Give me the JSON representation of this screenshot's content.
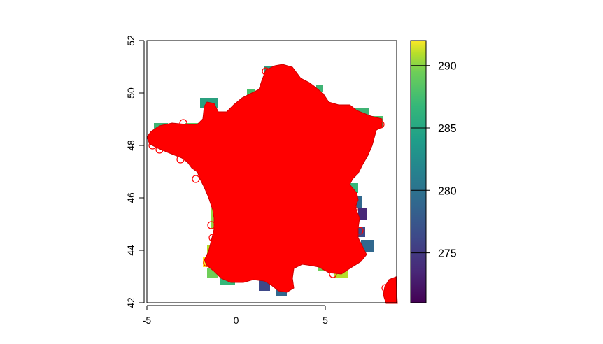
{
  "chart_data": {
    "type": "heatmap",
    "title": "",
    "xlabel": "",
    "ylabel": "",
    "xlim": [
      -5,
      9
    ],
    "ylim": [
      42,
      52
    ],
    "x_ticks": [
      -5,
      0,
      5
    ],
    "y_ticks": [
      42,
      44,
      46,
      48,
      50,
      52
    ],
    "overlay": {
      "type": "scatter",
      "marker": "circle",
      "color": "#ff0000",
      "description": "dense point cloud covering the territory of France (plus Corsica)"
    },
    "colorbar": {
      "colormap": "viridis",
      "range": [
        271,
        292
      ],
      "ticks": [
        275,
        280,
        285,
        290
      ]
    },
    "grid": false
  },
  "colors": {
    "points": "#ff0000",
    "axis": "#000000",
    "background": "#ffffff"
  }
}
